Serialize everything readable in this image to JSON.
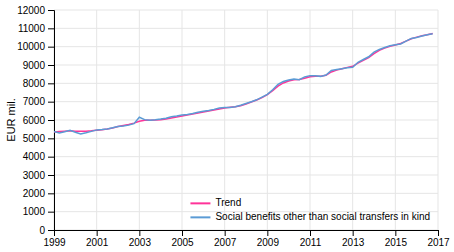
{
  "chart_data": {
    "type": "line",
    "ylabel": "EUR mil.",
    "x": [
      1999.0,
      1999.25,
      1999.5,
      1999.75,
      2000.0,
      2000.25,
      2000.5,
      2000.75,
      2001.0,
      2001.25,
      2001.5,
      2001.75,
      2002.0,
      2002.25,
      2002.5,
      2002.75,
      2003.0,
      2003.25,
      2003.5,
      2003.75,
      2004.0,
      2004.25,
      2004.5,
      2004.75,
      2005.0,
      2005.25,
      2005.5,
      2005.75,
      2006.0,
      2006.25,
      2006.5,
      2006.75,
      2007.0,
      2007.25,
      2007.5,
      2007.75,
      2008.0,
      2008.25,
      2008.5,
      2008.75,
      2009.0,
      2009.25,
      2009.5,
      2009.75,
      2010.0,
      2010.25,
      2010.5,
      2010.75,
      2011.0,
      2011.25,
      2011.5,
      2011.75,
      2012.0,
      2012.25,
      2012.5,
      2012.75,
      2013.0,
      2013.25,
      2013.5,
      2013.75,
      2014.0,
      2014.25,
      2014.5,
      2014.75,
      2015.0,
      2015.25,
      2015.5,
      2015.75,
      2016.0,
      2016.25,
      2016.5,
      2016.75
    ],
    "series": [
      {
        "name": "Trend",
        "color": "#ff3399",
        "values": [
          5350,
          5370,
          5390,
          5410,
          5390,
          5380,
          5390,
          5410,
          5440,
          5470,
          5510,
          5560,
          5640,
          5700,
          5760,
          5830,
          5930,
          5980,
          5990,
          6000,
          6020,
          6060,
          6110,
          6160,
          6220,
          6270,
          6320,
          6380,
          6440,
          6490,
          6540,
          6600,
          6660,
          6690,
          6720,
          6780,
          6870,
          6980,
          7090,
          7220,
          7380,
          7600,
          7850,
          8020,
          8130,
          8190,
          8210,
          8280,
          8360,
          8390,
          8390,
          8440,
          8620,
          8720,
          8800,
          8870,
          8930,
          9100,
          9250,
          9400,
          9620,
          9800,
          9920,
          10020,
          10090,
          10170,
          10300,
          10430,
          10520,
          10590,
          10650,
          10720
        ]
      },
      {
        "name": "Social benefits other than social transfers in kind",
        "color": "#5b9bd5",
        "values": [
          5380,
          5290,
          5360,
          5440,
          5330,
          5240,
          5300,
          5380,
          5460,
          5480,
          5510,
          5580,
          5650,
          5670,
          5720,
          5800,
          6150,
          6020,
          5980,
          6010,
          6050,
          6100,
          6180,
          6220,
          6270,
          6300,
          6350,
          6420,
          6480,
          6520,
          6580,
          6650,
          6680,
          6680,
          6720,
          6800,
          6900,
          7000,
          7100,
          7250,
          7400,
          7650,
          7950,
          8100,
          8180,
          8230,
          8200,
          8350,
          8420,
          8420,
          8380,
          8450,
          8700,
          8750,
          8800,
          8850,
          8880,
          9150,
          9300,
          9450,
          9700,
          9850,
          9950,
          10050,
          10100,
          10150,
          10300,
          10450,
          10500,
          10580,
          10650,
          10700
        ]
      }
    ],
    "xlim": [
      1999,
      2017
    ],
    "xticks": [
      1999,
      2001,
      2003,
      2005,
      2007,
      2009,
      2011,
      2013,
      2015,
      2017
    ],
    "ylim": [
      0,
      12000
    ],
    "yticks": [
      0,
      1000,
      2000,
      3000,
      4000,
      5000,
      6000,
      7000,
      8000,
      9000,
      10000,
      11000,
      12000
    ],
    "grid": true,
    "legend": "lower right"
  }
}
